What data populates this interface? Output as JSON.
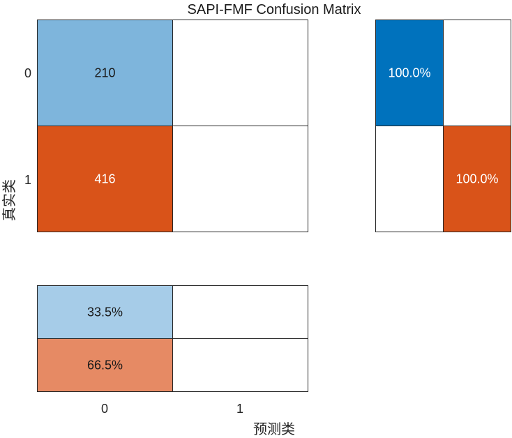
{
  "chart_data": {
    "type": "heatmap",
    "title": "SAPI-FMF Confusion Matrix",
    "xlabel": "预测类",
    "ylabel": "真实类",
    "row_classes": [
      "0",
      "1"
    ],
    "col_classes": [
      "0",
      "1"
    ],
    "matrix": [
      [
        210,
        null
      ],
      [
        416,
        null
      ]
    ],
    "row_summary": [
      [
        "100.0%",
        null
      ],
      [
        null,
        "100.0%"
      ]
    ],
    "column_summary": [
      [
        "33.5%",
        null
      ],
      [
        "66.5%",
        null
      ]
    ],
    "colors": {
      "count_class0": "#7EB5DC",
      "count_class1": "#D95319",
      "row_summary_class0": "#0072BD",
      "row_summary_class1": "#D95319",
      "col_summary_class0": "#A6CCE8",
      "col_summary_class1": "#E68A64",
      "empty": "#FFFFFF"
    }
  }
}
